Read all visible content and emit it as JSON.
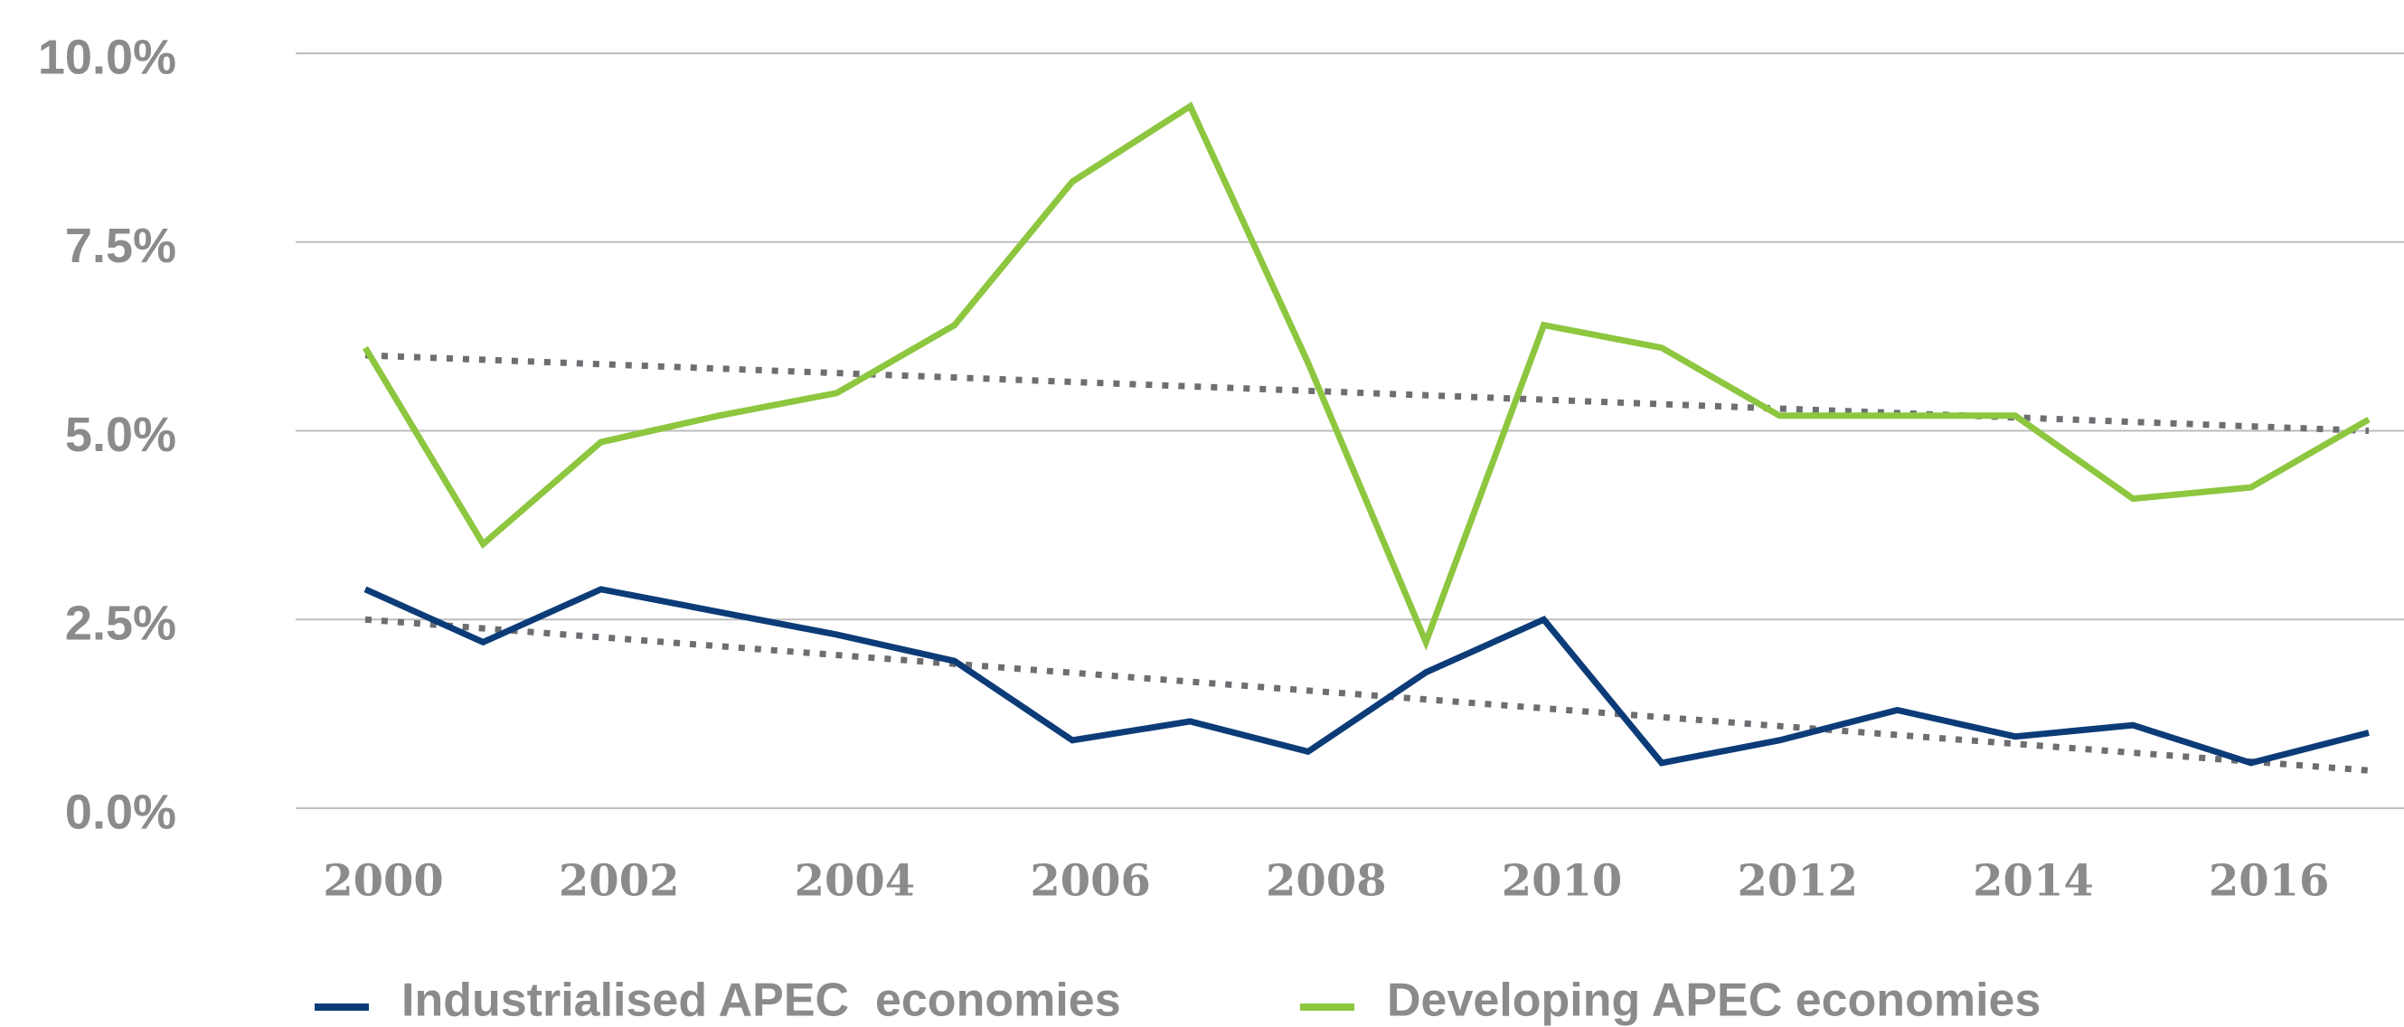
{
  "chart_data": {
    "type": "line",
    "x": [
      2000,
      2001,
      2002,
      2003,
      2004,
      2005,
      2006,
      2007,
      2008,
      2009,
      2010,
      2011,
      2012,
      2013,
      2014,
      2015,
      2016,
      2017
    ],
    "series": [
      {
        "name": "Industrialised APEC  economies",
        "color": "#0c3c78",
        "values": [
          2.9,
          2.2,
          2.9,
          2.6,
          2.3,
          1.95,
          0.9,
          1.15,
          0.75,
          1.8,
          2.5,
          0.6,
          0.9,
          1.3,
          0.95,
          1.1,
          0.6,
          1.0
        ]
      },
      {
        "name": "Developing APEC economies",
        "color": "#8dc63f",
        "values": [
          6.1,
          3.5,
          4.85,
          5.2,
          5.5,
          6.4,
          8.3,
          9.3,
          5.9,
          2.2,
          6.4,
          6.1,
          5.2,
          5.2,
          5.2,
          4.1,
          4.25,
          5.15
        ]
      }
    ],
    "trendlines": [
      {
        "color": "#6d6e71",
        "x": [
          2000,
          2017
        ],
        "values": [
          2.5,
          0.5
        ]
      },
      {
        "color": "#6d6e71",
        "x": [
          2000,
          2017
        ],
        "values": [
          6.0,
          5.0
        ]
      }
    ],
    "xlim": [
      2000,
      2017
    ],
    "xticks": [
      2000,
      2002,
      2004,
      2006,
      2008,
      2010,
      2012,
      2014,
      2016
    ],
    "ylim": [
      0,
      10
    ],
    "yticks": [
      {
        "value": 0,
        "label": "0.0%"
      },
      {
        "value": 2.5,
        "label": "2.5%"
      },
      {
        "value": 5,
        "label": "5.0%"
      },
      {
        "value": 7.5,
        "label": "7.5%"
      },
      {
        "value": 10,
        "label": "10.0%"
      }
    ],
    "grid": true,
    "legend": "bottom"
  }
}
